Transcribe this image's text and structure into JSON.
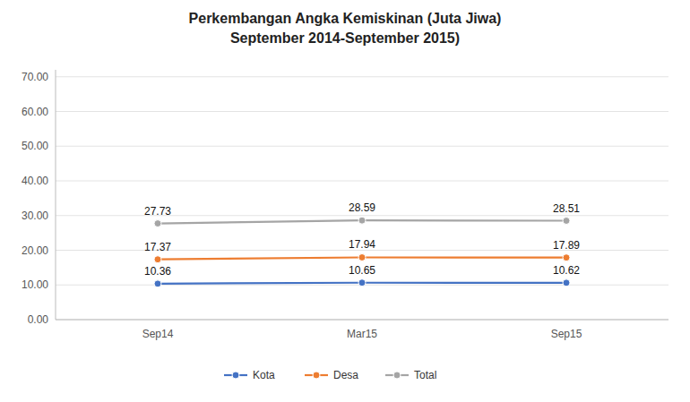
{
  "chart_data": {
    "type": "line",
    "title": "Perkembangan Angka Kemiskinan (Juta Jiwa)",
    "subtitle": "September 2014-September 2015)",
    "categories": [
      "Sep14",
      "Mar15",
      "Sep15"
    ],
    "series": [
      {
        "name": "Kota",
        "color": "#4472C4",
        "marker": "circle",
        "values": [
          10.36,
          10.65,
          10.62
        ]
      },
      {
        "name": "Desa",
        "color": "#ED7D31",
        "marker": "circle",
        "values": [
          17.37,
          17.94,
          17.89
        ]
      },
      {
        "name": "Total",
        "color": "#A5A5A5",
        "marker": "circle",
        "values": [
          27.73,
          28.59,
          28.51
        ]
      }
    ],
    "ylim": [
      0,
      72
    ],
    "yticks": [
      {
        "value": 0,
        "label": "0.00"
      },
      {
        "value": 10,
        "label": "10.00"
      },
      {
        "value": 20,
        "label": "20.00"
      },
      {
        "value": 30,
        "label": "30.00"
      },
      {
        "value": 40,
        "label": "40.00"
      },
      {
        "value": 50,
        "label": "50.00"
      },
      {
        "value": 60,
        "label": "60.00"
      },
      {
        "value": 70,
        "label": "70.00"
      }
    ],
    "grid": true,
    "data_labels": true,
    "legend": "bottom"
  }
}
